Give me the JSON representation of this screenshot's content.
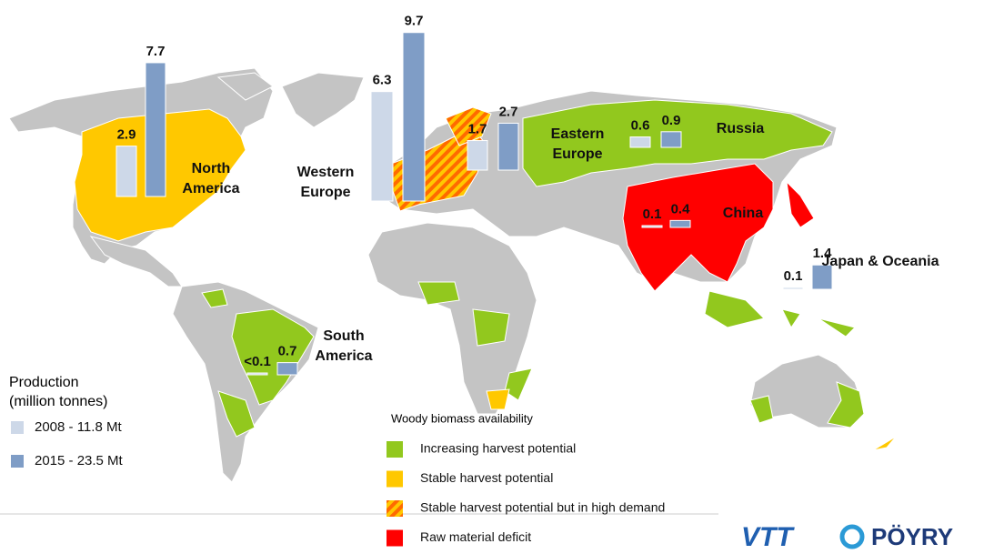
{
  "production": {
    "title": "Production",
    "unit": "(million tonnes)",
    "series": [
      {
        "name": "2008 -  11.8 Mt",
        "color": "#cdd8e8"
      },
      {
        "name": "2015 -  23.5 Mt",
        "color": "#7f9dc6"
      }
    ]
  },
  "regions": [
    {
      "name": "North America",
      "values": [
        2.9,
        7.7
      ]
    },
    {
      "name": "Western Europe",
      "values": [
        6.3,
        9.7
      ]
    },
    {
      "name": "Eastern Europe",
      "values": [
        1.7,
        2.7
      ]
    },
    {
      "name": "Russia",
      "values": [
        0.6,
        0.9
      ]
    },
    {
      "name": "China",
      "values": [
        0.1,
        0.4
      ]
    },
    {
      "name": "Japan & Oceania",
      "values": [
        0.1,
        1.4
      ]
    },
    {
      "name": "South America",
      "values": [
        0.05,
        0.7
      ],
      "value_labels": [
        "<0.1",
        "0.7"
      ]
    }
  ],
  "availability": {
    "title": "Woody biomass availability",
    "items": [
      {
        "label": "Increasing harvest potential",
        "colors": [
          "#92c81e"
        ]
      },
      {
        "label": "Stable harvest potential",
        "colors": [
          "#ffc800"
        ]
      },
      {
        "label": "Stable harvest potential but in high demand",
        "colors": [
          "#ff6a00",
          "#ffc800"
        ]
      },
      {
        "label": "Raw material deficit",
        "colors": [
          "#ff0000"
        ]
      }
    ]
  },
  "logos": [
    "VTT",
    "PÖYRY"
  ]
}
